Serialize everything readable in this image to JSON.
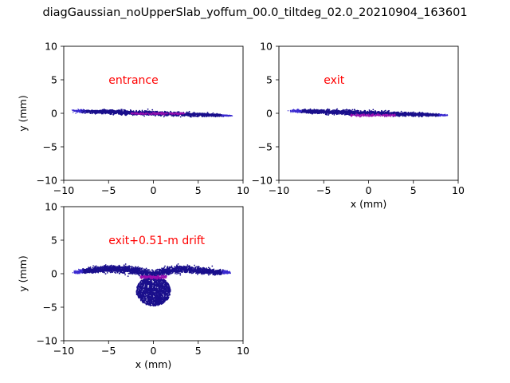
{
  "figure": {
    "suptitle": "diagGaussian_noUpperSlab_yoffum_00.0_tiltdeg_02.0_20210904_163601"
  },
  "colors": {
    "scatter_main": "#1a0f8c",
    "scatter_edge": "#3a2ad0",
    "core": "#9a0fb0",
    "annotation": "#ff0000"
  },
  "chart_data": [
    {
      "type": "scatter",
      "panel": "entrance",
      "annotation": "entrance",
      "xlabel": "",
      "ylabel": "y (mm)",
      "xlim": [
        -10,
        10
      ],
      "ylim": [
        -10,
        10
      ],
      "xticks": [
        "−10",
        "−5",
        "0",
        "5",
        "10"
      ],
      "yticks": [
        "−10",
        "−5",
        "0",
        "5",
        "10"
      ],
      "band": {
        "x_min": -8.8,
        "x_max": 8.6,
        "y_at_x_min": 0.35,
        "y_at_x_max": -0.35,
        "half_thickness": 0.28
      },
      "core": {
        "x_min": -2.5,
        "x_max": 3.5,
        "y_center": -0.05,
        "half_thickness": 0.15
      }
    },
    {
      "type": "scatter",
      "panel": "exit",
      "annotation": "exit",
      "xlabel": "x (mm)",
      "ylabel": "",
      "xlim": [
        -10,
        10
      ],
      "ylim": [
        -10,
        10
      ],
      "xticks": [
        "−10",
        "−5",
        "0",
        "5",
        "10"
      ],
      "yticks": [
        "−10",
        "−5",
        "0",
        "5",
        "10"
      ],
      "band": {
        "x_min": -8.6,
        "x_max": 8.8,
        "y_at_x_min": 0.35,
        "y_at_x_max": -0.3,
        "half_thickness": 0.3
      },
      "core": {
        "x_min": -2.0,
        "x_max": 3.0,
        "y_center": -0.3,
        "half_thickness": 0.18
      }
    },
    {
      "type": "scatter",
      "panel": "drift",
      "annotation": "exit+0.51-m drift",
      "xlabel": "x (mm)",
      "ylabel": "y (mm)",
      "xlim": [
        -10,
        10
      ],
      "ylim": [
        -10,
        10
      ],
      "xticks": [
        "−10",
        "−5",
        "0",
        "5",
        "10"
      ],
      "yticks": [
        "−10",
        "−5",
        "0",
        "5",
        "10"
      ],
      "wings": {
        "x_min": -8.8,
        "x_max": 8.5,
        "peak_left_x": -4.5,
        "peak_right_x": 3.5,
        "peak_y": 0.7,
        "center_y": -0.2,
        "end_y": 0.2,
        "half_thickness": 0.45
      },
      "blob": {
        "x_center": 0.0,
        "y_center": -2.6,
        "rx": 1.9,
        "ry": 2.2
      },
      "core": {
        "x_min": -1.5,
        "x_max": 1.5,
        "y_center": -0.5,
        "half_thickness": 0.25
      }
    }
  ]
}
